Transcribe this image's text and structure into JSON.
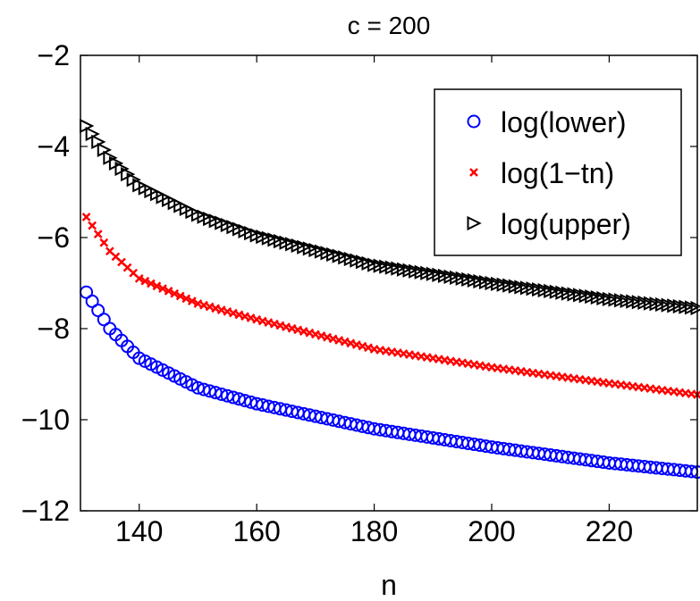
{
  "chart_data": {
    "type": "scatter",
    "title": "c = 200",
    "xlabel": "n",
    "ylabel": "",
    "xlim": [
      130,
      235
    ],
    "ylim": [
      -12,
      -2
    ],
    "xticks": [
      140,
      160,
      180,
      200,
      220
    ],
    "yticks": [
      -2,
      -4,
      -6,
      -8,
      -10,
      -12
    ],
    "xtick_labels": [
      "140",
      "160",
      "180",
      "200",
      "220"
    ],
    "ytick_labels": [
      "−2",
      "−4",
      "−6",
      "−8",
      "−10",
      "−12"
    ],
    "grid": false,
    "legend_position": "top-right",
    "x_range": {
      "start": 131,
      "end": 235,
      "step": 1
    },
    "series": [
      {
        "name": "log(lower)",
        "marker": "circle",
        "color": "#0000ff",
        "points": [
          [
            131,
            -7.2
          ],
          [
            135,
            -8.0
          ],
          [
            140,
            -8.65
          ],
          [
            150,
            -9.3
          ],
          [
            160,
            -9.65
          ],
          [
            180,
            -10.2
          ],
          [
            200,
            -10.6
          ],
          [
            220,
            -10.95
          ],
          [
            235,
            -11.15
          ]
        ]
      },
      {
        "name": "log(1−tn)",
        "marker": "x",
        "color": "#ff0000",
        "points": [
          [
            131,
            -5.55
          ],
          [
            135,
            -6.3
          ],
          [
            140,
            -6.9
          ],
          [
            150,
            -7.45
          ],
          [
            160,
            -7.8
          ],
          [
            180,
            -8.45
          ],
          [
            200,
            -8.85
          ],
          [
            220,
            -9.2
          ],
          [
            235,
            -9.45
          ]
        ]
      },
      {
        "name": "log(upper)",
        "marker": "triangle-right",
        "color": "#000000",
        "points": [
          [
            131,
            -3.55
          ],
          [
            135,
            -4.25
          ],
          [
            140,
            -4.85
          ],
          [
            150,
            -5.5
          ],
          [
            160,
            -5.95
          ],
          [
            180,
            -6.6
          ],
          [
            200,
            -7.0
          ],
          [
            220,
            -7.35
          ],
          [
            235,
            -7.55
          ]
        ]
      }
    ]
  }
}
